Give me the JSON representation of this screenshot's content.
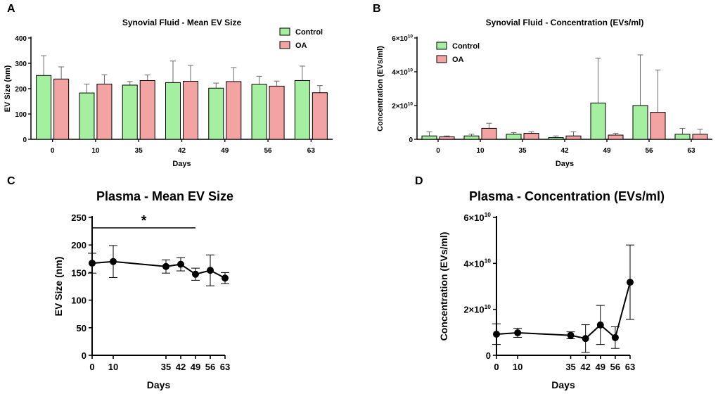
{
  "colors": {
    "control": "#a5f0a0",
    "oa": "#f4a3a3",
    "axis": "#000000",
    "errbar": "#6a6a6a",
    "line": "#000000"
  },
  "chart_data": [
    {
      "panel": "A",
      "type": "bar",
      "title": "Synovial Fluid - Mean EV Size",
      "xlabel": "Days",
      "ylabel": "EV Size (nm)",
      "ylim": [
        0,
        400
      ],
      "yticks": [
        "0",
        "100",
        "200",
        "300",
        "400"
      ],
      "categories": [
        "0",
        "10",
        "35",
        "42",
        "49",
        "56",
        "63"
      ],
      "legend_position": "top-right",
      "series": [
        {
          "name": "Control",
          "values": [
            252,
            183,
            214,
            224,
            202,
            217,
            232
          ],
          "errors": [
            78,
            35,
            14,
            85,
            20,
            32,
            57
          ]
        },
        {
          "name": "OA",
          "values": [
            238,
            218,
            232,
            229,
            228,
            210,
            184
          ],
          "errors": [
            48,
            37,
            22,
            63,
            55,
            20,
            28
          ]
        }
      ]
    },
    {
      "panel": "B",
      "type": "bar",
      "title": "Synovial Fluid - Concentration (EVs/ml)",
      "xlabel": "Days",
      "ylabel": "Concentration (EVs/ml)",
      "ylim": [
        0,
        6
      ],
      "yticks": [
        {
          "base": "0",
          "exp": ""
        },
        {
          "base": "2×10",
          "exp": "10"
        },
        {
          "base": "4×10",
          "exp": "10"
        },
        {
          "base": "6×10",
          "exp": "10"
        }
      ],
      "categories": [
        "0",
        "10",
        "35",
        "42",
        "49",
        "56",
        "63"
      ],
      "legend_position": "top-left",
      "series": [
        {
          "name": "Control",
          "values": [
            0.2,
            0.2,
            0.3,
            0.1,
            2.15,
            2.0,
            0.3
          ],
          "errors": [
            0.25,
            0.1,
            0.1,
            0.1,
            2.65,
            3.0,
            0.35
          ]
        },
        {
          "name": "OA",
          "values": [
            0.15,
            0.65,
            0.35,
            0.2,
            0.25,
            1.6,
            0.3
          ],
          "errors": [
            0.05,
            0.3,
            0.1,
            0.25,
            0.1,
            2.5,
            0.3
          ]
        }
      ]
    },
    {
      "panel": "C",
      "type": "line",
      "title": "Plasma - Mean EV Size",
      "xlabel": "Days",
      "ylabel": "EV Size (nm)",
      "ylim": [
        0,
        250
      ],
      "xlim": [
        0,
        63
      ],
      "yticks": [
        "0",
        "50",
        "100",
        "150",
        "200",
        "250"
      ],
      "xticks": [
        "0",
        "10",
        "35",
        "42",
        "49",
        "56",
        "63"
      ],
      "x": [
        0,
        10,
        35,
        42,
        49,
        56,
        63
      ],
      "y": [
        167,
        170,
        161,
        165,
        147,
        154,
        140
      ],
      "errors": [
        18,
        29,
        12,
        12,
        11,
        28,
        10
      ],
      "annotation": {
        "text": "*",
        "from_day": 0,
        "to_day": 49,
        "at_value": 231
      }
    },
    {
      "panel": "D",
      "type": "line",
      "title": "Plasma - Concentration (EVs/ml)",
      "xlabel": "Days",
      "ylabel": "Concentration (EVs/ml)",
      "ylim": [
        0,
        6
      ],
      "xlim": [
        0,
        63
      ],
      "yticks": [
        {
          "base": "0",
          "exp": ""
        },
        {
          "base": "2×10",
          "exp": "10"
        },
        {
          "base": "4×10",
          "exp": "10"
        },
        {
          "base": "6×10",
          "exp": "10"
        }
      ],
      "xticks": [
        "0",
        "10",
        "35",
        "42",
        "49",
        "56",
        "63"
      ],
      "x": [
        0,
        10,
        35,
        42,
        49,
        56,
        63
      ],
      "y": [
        0.92,
        0.98,
        0.87,
        0.73,
        1.32,
        0.77,
        3.18
      ],
      "errors": [
        0.45,
        0.2,
        0.15,
        0.6,
        0.85,
        0.47,
        1.62
      ]
    }
  ]
}
